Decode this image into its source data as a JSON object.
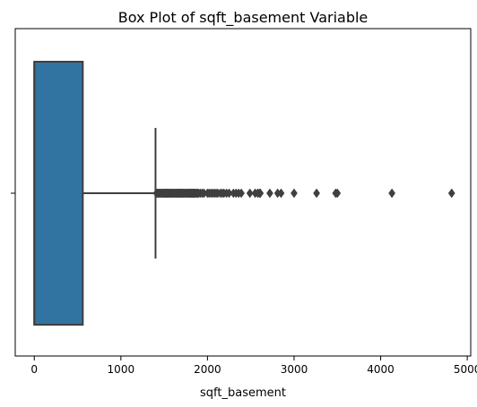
{
  "chart_data": {
    "type": "box",
    "title": "Box Plot of sqft_basement Variable",
    "xlabel": "sqft_basement",
    "ylabel": "",
    "xlim": [
      -220,
      5040
    ],
    "xticks": [
      0,
      1000,
      2000,
      3000,
      4000,
      5000
    ],
    "xtick_labels": [
      "0",
      "1000",
      "2000",
      "3000",
      "4000",
      "5000"
    ],
    "orientation": "horizontal",
    "box": {
      "min": 0,
      "q1": 0,
      "median": 0,
      "q3": 560,
      "whisker_low": 0,
      "whisker_high": 1400,
      "color": "#3274a1",
      "edge_color": "#3f3f3f"
    },
    "outliers": [
      1410,
      1420,
      1430,
      1440,
      1450,
      1460,
      1470,
      1480,
      1490,
      1500,
      1510,
      1520,
      1530,
      1540,
      1550,
      1560,
      1570,
      1580,
      1590,
      1600,
      1610,
      1620,
      1630,
      1640,
      1650,
      1660,
      1670,
      1680,
      1690,
      1700,
      1710,
      1720,
      1730,
      1740,
      1750,
      1760,
      1770,
      1780,
      1790,
      1800,
      1810,
      1820,
      1830,
      1840,
      1850,
      1860,
      1870,
      1880,
      1890,
      1900,
      1920,
      1940,
      1960,
      2000,
      2020,
      2040,
      2060,
      2080,
      2100,
      2120,
      2150,
      2170,
      2190,
      2220,
      2250,
      2300,
      2330,
      2360,
      2390,
      2490,
      2550,
      2580,
      2600,
      2610,
      2720,
      2810,
      2850,
      3000,
      3260,
      3480,
      3500,
      4130,
      4820
    ],
    "grid": false,
    "legend": false
  }
}
